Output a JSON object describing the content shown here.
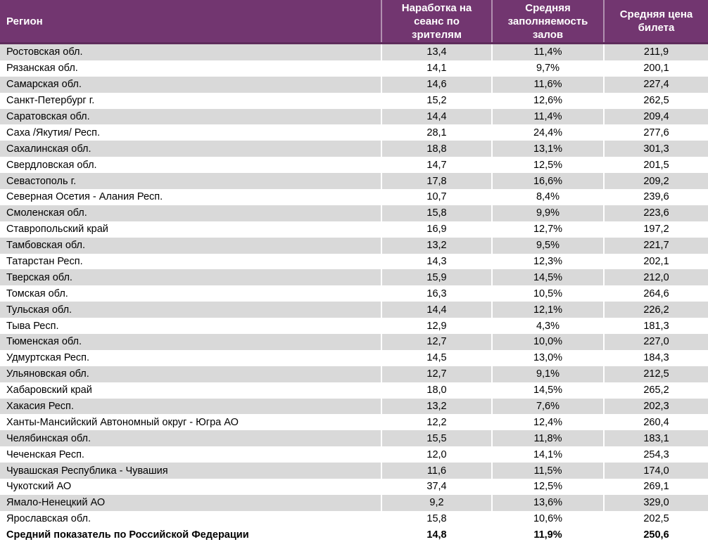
{
  "table": {
    "colors": {
      "header_bg": "#723670",
      "header_rule": "#5e2c5b",
      "header_text": "#ffffff",
      "stripe_bg": "#d9d9d9",
      "body_text": "#000000"
    },
    "columns": [
      {
        "id": "region",
        "label": "Регион"
      },
      {
        "id": "sessions_per_viewer",
        "label": "Наработка на\nсеанс по\nзрителям"
      },
      {
        "id": "occupancy",
        "label": "Средняя\nзаполняемость\nзалов"
      },
      {
        "id": "ticket_price",
        "label": "Средняя цена\nбилета"
      }
    ],
    "rows": [
      {
        "region": "Ростовская обл.",
        "sessions_per_viewer": "13,4",
        "occupancy": "11,4%",
        "ticket_price": "211,9"
      },
      {
        "region": "Рязанская обл.",
        "sessions_per_viewer": "14,1",
        "occupancy": "9,7%",
        "ticket_price": "200,1"
      },
      {
        "region": "Самарская обл.",
        "sessions_per_viewer": "14,6",
        "occupancy": "11,6%",
        "ticket_price": "227,4"
      },
      {
        "region": "Санкт-Петербург г.",
        "sessions_per_viewer": "15,2",
        "occupancy": "12,6%",
        "ticket_price": "262,5"
      },
      {
        "region": "Саратовская обл.",
        "sessions_per_viewer": "14,4",
        "occupancy": "11,4%",
        "ticket_price": "209,4"
      },
      {
        "region": "Саха /Якутия/ Респ.",
        "sessions_per_viewer": "28,1",
        "occupancy": "24,4%",
        "ticket_price": "277,6"
      },
      {
        "region": "Сахалинская обл.",
        "sessions_per_viewer": "18,8",
        "occupancy": "13,1%",
        "ticket_price": "301,3"
      },
      {
        "region": "Свердловская обл.",
        "sessions_per_viewer": "14,7",
        "occupancy": "12,5%",
        "ticket_price": "201,5"
      },
      {
        "region": "Севастополь г.",
        "sessions_per_viewer": "17,8",
        "occupancy": "16,6%",
        "ticket_price": "209,2"
      },
      {
        "region": "Северная Осетия - Алания Респ.",
        "sessions_per_viewer": "10,7",
        "occupancy": "8,4%",
        "ticket_price": "239,6"
      },
      {
        "region": "Смоленская обл.",
        "sessions_per_viewer": "15,8",
        "occupancy": "9,9%",
        "ticket_price": "223,6"
      },
      {
        "region": "Ставропольский край",
        "sessions_per_viewer": "16,9",
        "occupancy": "12,7%",
        "ticket_price": "197,2"
      },
      {
        "region": "Тамбовская обл.",
        "sessions_per_viewer": "13,2",
        "occupancy": "9,5%",
        "ticket_price": "221,7"
      },
      {
        "region": "Татарстан Респ.",
        "sessions_per_viewer": "14,3",
        "occupancy": "12,3%",
        "ticket_price": "202,1"
      },
      {
        "region": "Тверская обл.",
        "sessions_per_viewer": "15,9",
        "occupancy": "14,5%",
        "ticket_price": "212,0"
      },
      {
        "region": "Томская обл.",
        "sessions_per_viewer": "16,3",
        "occupancy": "10,5%",
        "ticket_price": "264,6"
      },
      {
        "region": "Тульская обл.",
        "sessions_per_viewer": "14,4",
        "occupancy": "12,1%",
        "ticket_price": "226,2"
      },
      {
        "region": "Тыва Респ.",
        "sessions_per_viewer": "12,9",
        "occupancy": "4,3%",
        "ticket_price": "181,3"
      },
      {
        "region": "Тюменская обл.",
        "sessions_per_viewer": "12,7",
        "occupancy": "10,0%",
        "ticket_price": "227,0"
      },
      {
        "region": "Удмуртская Респ.",
        "sessions_per_viewer": "14,5",
        "occupancy": "13,0%",
        "ticket_price": "184,3"
      },
      {
        "region": "Ульяновская обл.",
        "sessions_per_viewer": "12,7",
        "occupancy": "9,1%",
        "ticket_price": "212,5"
      },
      {
        "region": "Хабаровский край",
        "sessions_per_viewer": "18,0",
        "occupancy": "14,5%",
        "ticket_price": "265,2"
      },
      {
        "region": "Хакасия Респ.",
        "sessions_per_viewer": "13,2",
        "occupancy": "7,6%",
        "ticket_price": "202,3"
      },
      {
        "region": "Ханты-Мансийский Автономный округ - Югра АО",
        "sessions_per_viewer": "12,2",
        "occupancy": "12,4%",
        "ticket_price": "260,4"
      },
      {
        "region": "Челябинская обл.",
        "sessions_per_viewer": "15,5",
        "occupancy": "11,8%",
        "ticket_price": "183,1"
      },
      {
        "region": "Чеченская Респ.",
        "sessions_per_viewer": "12,0",
        "occupancy": "14,1%",
        "ticket_price": "254,3"
      },
      {
        "region": "Чувашская Республика - Чувашия",
        "sessions_per_viewer": "11,6",
        "occupancy": "11,5%",
        "ticket_price": "174,0"
      },
      {
        "region": "Чукотский АО",
        "sessions_per_viewer": "37,4",
        "occupancy": "12,5%",
        "ticket_price": "269,1"
      },
      {
        "region": "Ямало-Ненецкий АО",
        "sessions_per_viewer": "9,2",
        "occupancy": "13,6%",
        "ticket_price": "329,0"
      },
      {
        "region": "Ярославская обл.",
        "sessions_per_viewer": "15,8",
        "occupancy": "10,6%",
        "ticket_price": "202,5"
      },
      {
        "region": "Средний показатель по Российской Федерации",
        "sessions_per_viewer": "14,8",
        "occupancy": "11,9%",
        "ticket_price": "250,6",
        "is_total": true
      }
    ]
  }
}
